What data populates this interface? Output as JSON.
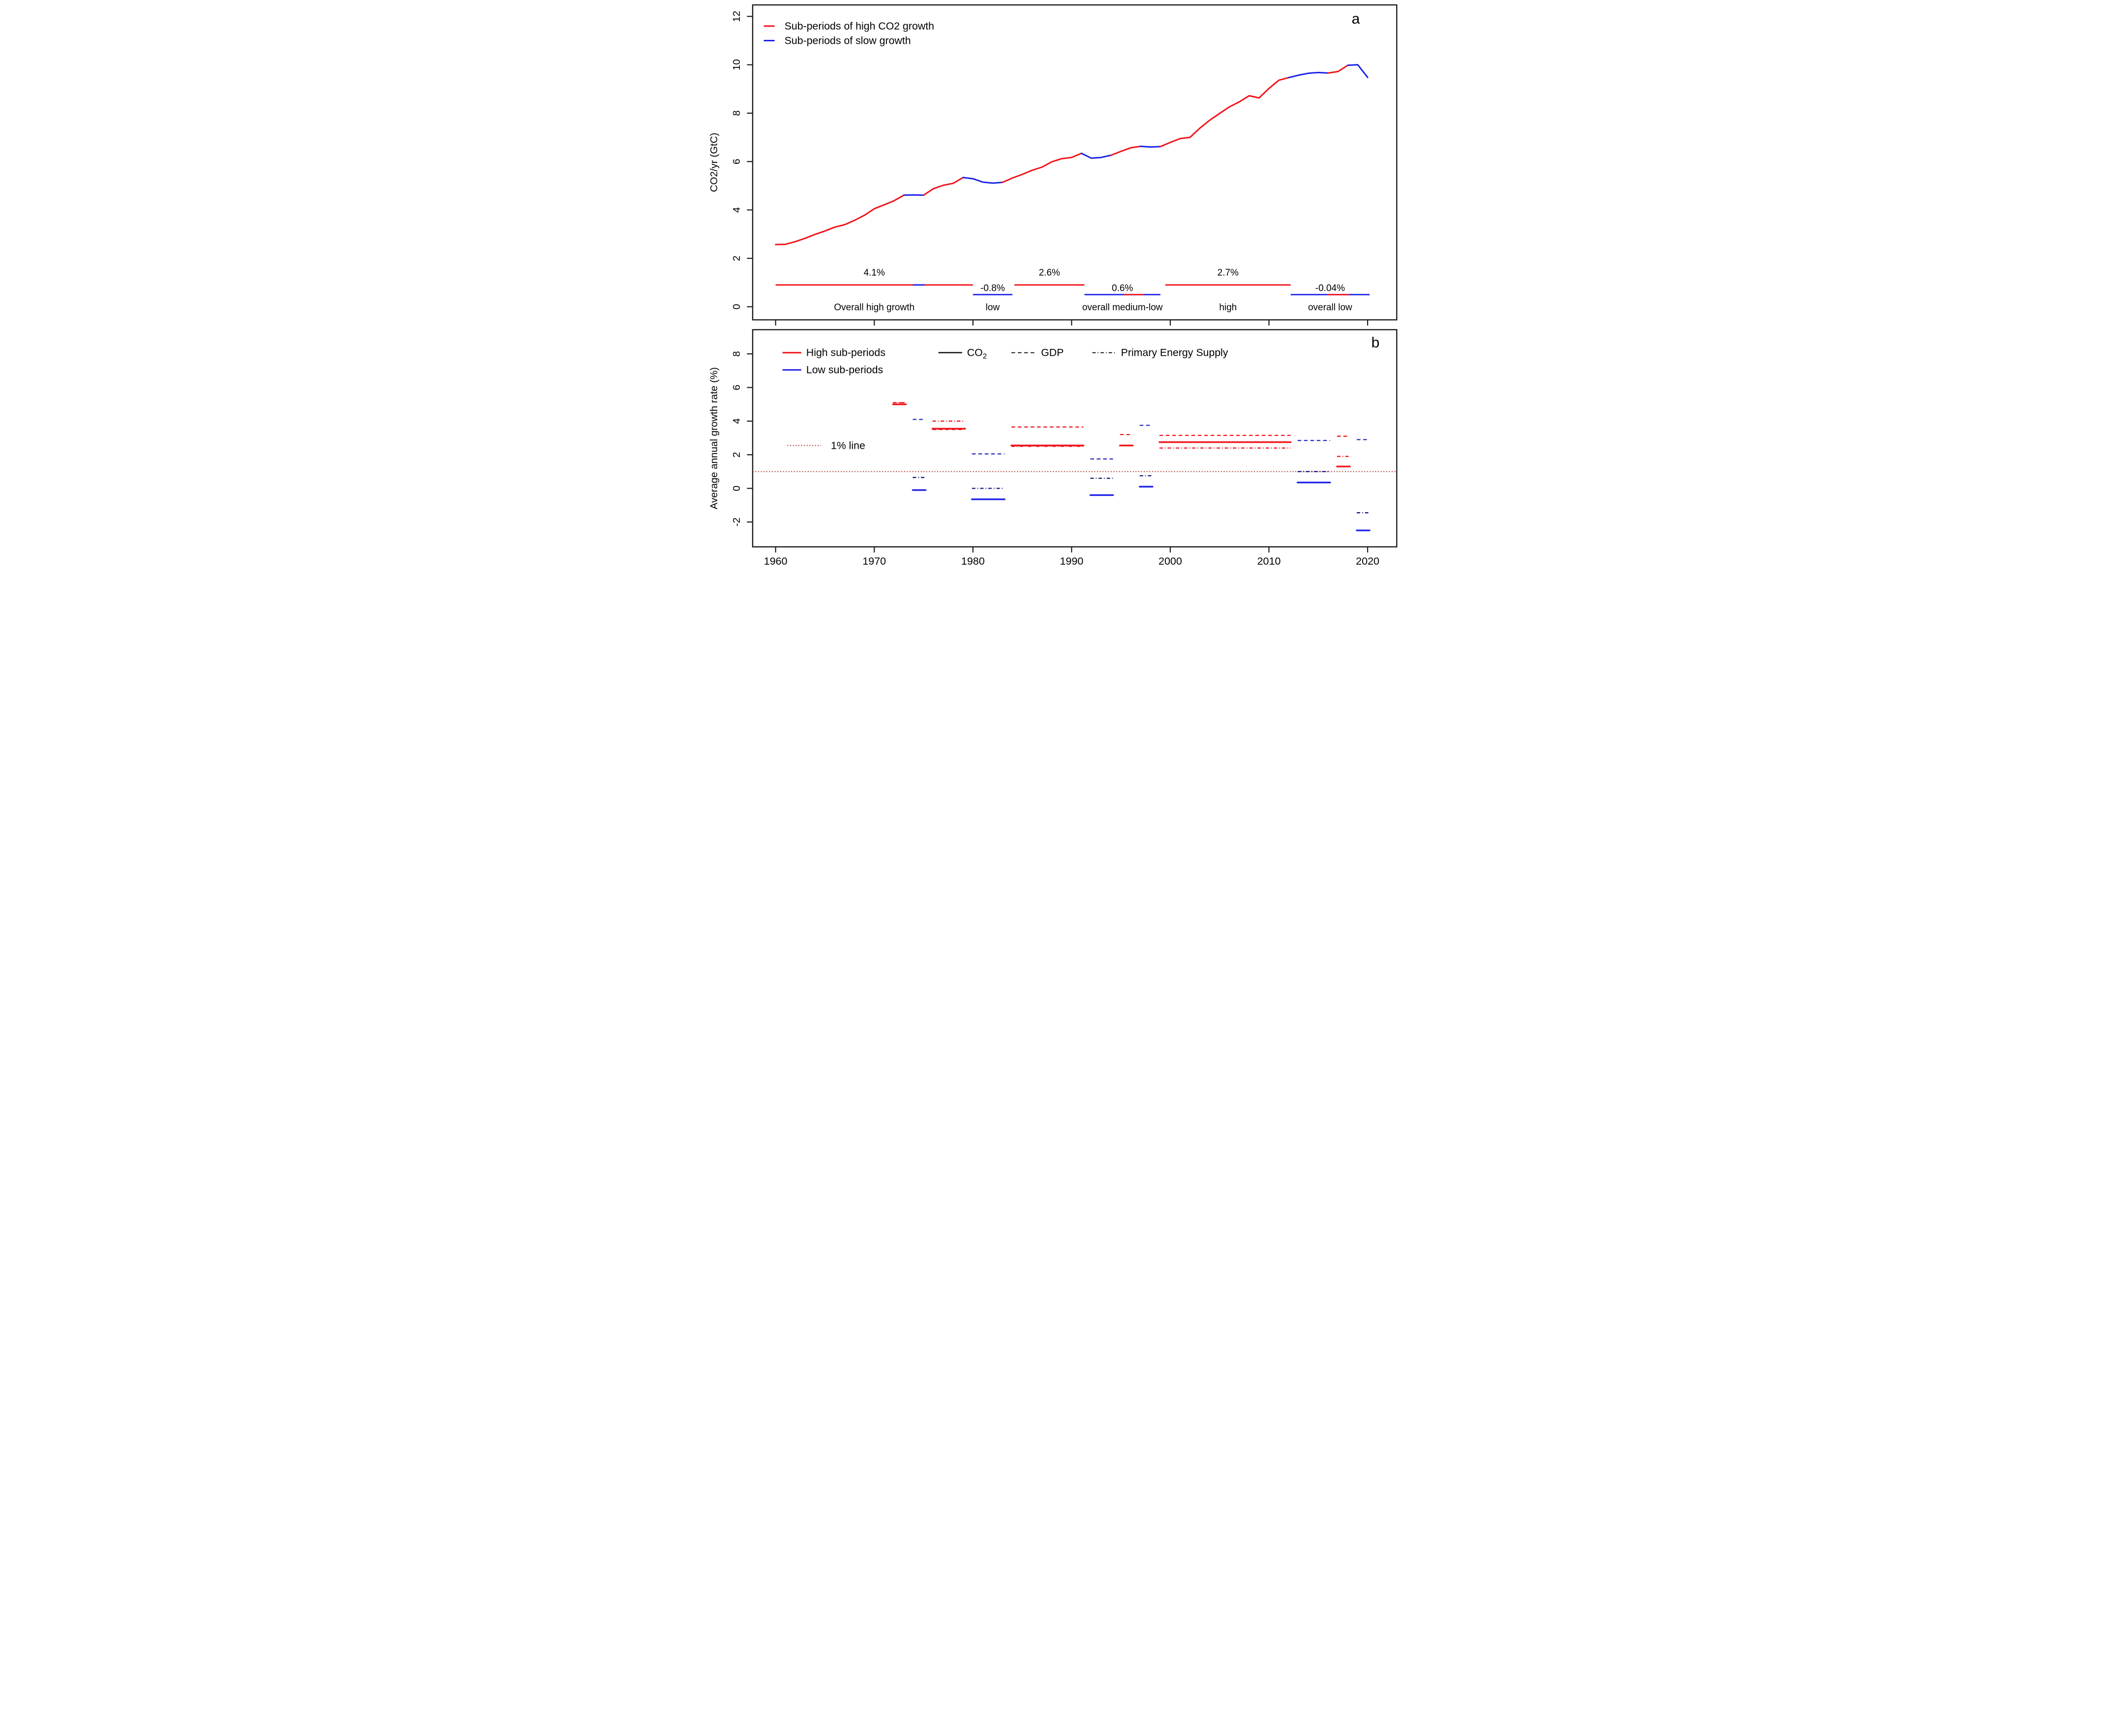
{
  "figure": {
    "panel_a_label": "a",
    "panel_b_label": "b",
    "colors": {
      "high": "#f0141b",
      "low": "#1e22e6",
      "low_dashed": "#2a2ec0",
      "low_dashdot": "#17177c",
      "reference": "#a11d1d",
      "series_black": "#1a1a1a",
      "frame": "#1a1a1a"
    }
  },
  "chart_data": [
    {
      "panel": "a",
      "type": "line",
      "title": "",
      "xlabel": "",
      "ylabel": "CO2/yr (GtC)",
      "ylim": [
        -0.55,
        12.5
      ],
      "yticks": [
        0,
        2,
        4,
        6,
        8,
        10,
        12
      ],
      "xlim": [
        1957.7,
        2022.9
      ],
      "xticks": [
        1960,
        1970,
        1980,
        1990,
        2000,
        2010,
        2020
      ],
      "xtick_labels_shown": false,
      "legend": [
        {
          "label": "Sub-periods of high CO2 growth",
          "type": "high"
        },
        {
          "label": "Sub-periods of slow growth",
          "type": "low"
        }
      ],
      "series": {
        "name": "Global CO2 emissions (GtC/yr)",
        "x_start": 1960,
        "values": [
          2.57,
          2.58,
          2.69,
          2.83,
          2.99,
          3.13,
          3.29,
          3.39,
          3.57,
          3.78,
          4.05,
          4.21,
          4.38,
          4.61,
          4.62,
          4.61,
          4.88,
          5.02,
          5.1,
          5.34,
          5.29,
          5.15,
          5.11,
          5.14,
          5.32,
          5.47,
          5.64,
          5.77,
          5.99,
          6.12,
          6.17,
          6.34,
          6.14,
          6.17,
          6.26,
          6.42,
          6.57,
          6.63,
          6.6,
          6.62,
          6.79,
          6.95,
          7.0,
          7.38,
          7.71,
          7.99,
          8.26,
          8.47,
          8.72,
          8.63,
          9.02,
          9.36,
          9.47,
          9.57,
          9.65,
          9.68,
          9.66,
          9.72,
          9.98,
          10.0,
          9.48
        ],
        "segments": [
          {
            "from": 1960,
            "to": 1973,
            "type": "high"
          },
          {
            "from": 1973,
            "to": 1975,
            "type": "low"
          },
          {
            "from": 1975,
            "to": 1979,
            "type": "high"
          },
          {
            "from": 1979,
            "to": 1983,
            "type": "low"
          },
          {
            "from": 1983,
            "to": 1991,
            "type": "high"
          },
          {
            "from": 1991,
            "to": 1994,
            "type": "low"
          },
          {
            "from": 1994,
            "to": 1997,
            "type": "high"
          },
          {
            "from": 1997,
            "to": 1999,
            "type": "low"
          },
          {
            "from": 1999,
            "to": 2012,
            "type": "high"
          },
          {
            "from": 2012,
            "to": 2016,
            "type": "low"
          },
          {
            "from": 2016,
            "to": 2018,
            "type": "high"
          },
          {
            "from": 2018,
            "to": 2020,
            "type": "low"
          }
        ]
      },
      "period_bars": [
        {
          "rate": "4.1%",
          "name": "Overall high growth",
          "range": [
            1960,
            1980
          ],
          "type": "high",
          "level": 0.9,
          "sub": [
            {
              "range": [
                1973.9,
                1975.1
              ],
              "type": "low"
            }
          ]
        },
        {
          "rate": "-0.8%",
          "name": "low",
          "range": [
            1980,
            1984
          ],
          "type": "low",
          "level": 0.5,
          "sub": []
        },
        {
          "rate": "2.6%",
          "name": "",
          "range": [
            1984.2,
            1991.3
          ],
          "type": "high",
          "level": 0.9,
          "sub": []
        },
        {
          "rate": "0.6%",
          "name": "overall medium-low",
          "range": [
            1991.3,
            1999.0
          ],
          "type": "low",
          "level": 0.5,
          "sub": [
            {
              "range": [
                1995.3,
                1997.3
              ],
              "type": "high"
            }
          ]
        },
        {
          "rate": "2.7%",
          "name": "high",
          "range": [
            1999.5,
            2012.2
          ],
          "type": "high",
          "level": 0.9,
          "sub": []
        },
        {
          "rate": "-0.04%",
          "name": "overall low",
          "range": [
            2012.2,
            2020.2
          ],
          "type": "low",
          "level": 0.5,
          "sub": [
            {
              "range": [
                2015.9,
                2018.1
              ],
              "type": "high"
            }
          ]
        }
      ]
    },
    {
      "panel": "b",
      "type": "segments",
      "title": "",
      "xlabel": "",
      "ylabel": "Average annual growth rate (%)",
      "ylim": [
        -3.5,
        9.4
      ],
      "yticks": [
        -2,
        0,
        2,
        4,
        6,
        8
      ],
      "xticks": [
        1960,
        1970,
        1980,
        1990,
        2000,
        2010,
        2020
      ],
      "xtick_labels_shown": true,
      "reference_line": {
        "value": 1,
        "label": "1% line"
      },
      "legend_periods": [
        {
          "label": "High sub-periods",
          "type": "high"
        },
        {
          "label": "Low sub-periods",
          "type": "low"
        }
      ],
      "legend_series": [
        {
          "label": "CO2",
          "label_main": "CO",
          "label_sub": "2",
          "style": "solid"
        },
        {
          "label": "GDP",
          "label_main": "GDP",
          "label_sub": "",
          "style": "dashed"
        },
        {
          "label": "Primary Energy Supply",
          "label_main": "Primary Energy Supply",
          "label_sub": "",
          "style": "dashdot"
        }
      ],
      "periods": [
        {
          "range": [
            1971.9,
            1973.2
          ],
          "type": "high",
          "co2": 5.0,
          "gdp": 5.1,
          "pes": 5.1
        },
        {
          "range": [
            1973.9,
            1975.2
          ],
          "type": "low",
          "co2": -0.1,
          "gdp": 4.1,
          "pes": 0.65
        },
        {
          "range": [
            1975.9,
            1979.2
          ],
          "type": "high",
          "co2": 3.55,
          "gdp": 3.5,
          "pes": 4.0
        },
        {
          "range": [
            1979.9,
            1983.2
          ],
          "type": "low",
          "co2": -0.65,
          "gdp": 2.05,
          "pes": 0.0
        },
        {
          "range": [
            1983.9,
            1991.2
          ],
          "type": "high",
          "co2": 2.55,
          "gdp": 3.65,
          "pes": 2.5
        },
        {
          "range": [
            1991.9,
            1994.2
          ],
          "type": "low",
          "co2": -0.4,
          "gdp": 1.75,
          "pes": 0.6
        },
        {
          "range": [
            1994.9,
            1996.2
          ],
          "type": "high",
          "co2": 2.55,
          "gdp": 3.2,
          "pes": null
        },
        {
          "range": [
            1996.9,
            1998.2
          ],
          "type": "low",
          "co2": 0.1,
          "gdp": 3.75,
          "pes": 0.75
        },
        {
          "range": [
            1998.9,
            2012.2
          ],
          "type": "high",
          "co2": 2.75,
          "gdp": 3.15,
          "pes": 2.4
        },
        {
          "range": [
            2012.9,
            2016.2
          ],
          "type": "low",
          "co2": 0.35,
          "gdp": 2.85,
          "pes": 1.0
        },
        {
          "range": [
            2016.9,
            2018.2
          ],
          "type": "high",
          "co2": 1.3,
          "gdp": 3.1,
          "pes": 1.9
        },
        {
          "range": [
            2018.9,
            2020.2
          ],
          "type": "low",
          "co2": -2.5,
          "gdp": 2.9,
          "pes": -1.45
        }
      ]
    }
  ]
}
